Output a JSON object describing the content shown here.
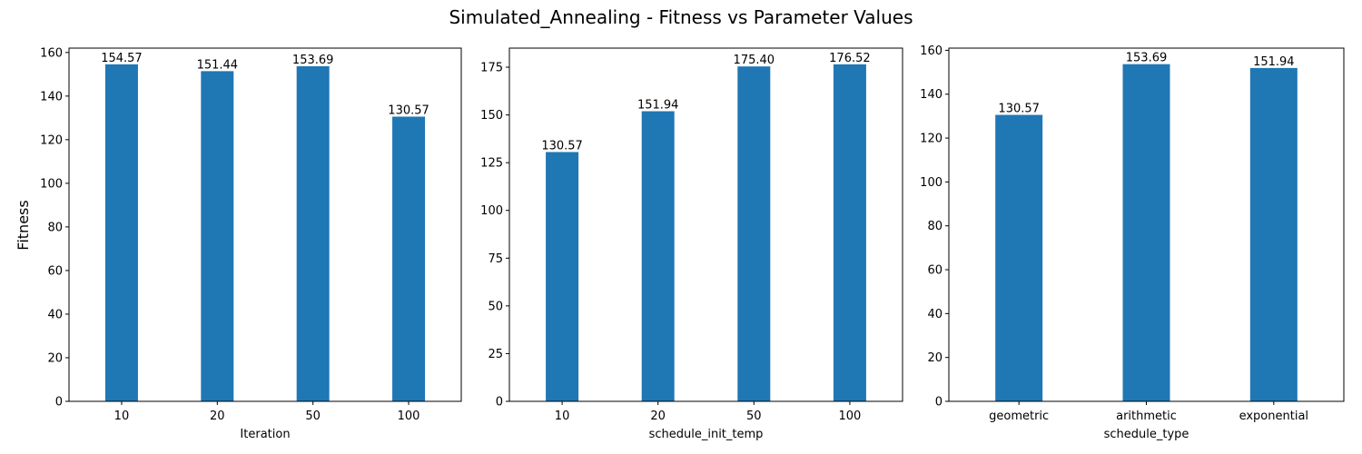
{
  "suptitle": "Simulated_Annealing - Fitness vs Parameter Values",
  "ylabel": "Fitness",
  "bar_color": "#1f77b4",
  "chart_data": [
    {
      "type": "bar",
      "categories": [
        "10",
        "20",
        "50",
        "100"
      ],
      "values": [
        154.57,
        151.44,
        153.69,
        130.57
      ],
      "data_labels": [
        "154.57",
        "151.44",
        "153.69",
        "130.57"
      ],
      "xlabel": "Iteration",
      "ylabel": "Fitness",
      "ylim": [
        0,
        162
      ],
      "yticks": [
        0,
        20,
        40,
        60,
        80,
        100,
        120,
        140,
        160
      ]
    },
    {
      "type": "bar",
      "categories": [
        "10",
        "20",
        "50",
        "100"
      ],
      "values": [
        130.57,
        151.94,
        175.4,
        176.52
      ],
      "data_labels": [
        "130.57",
        "151.94",
        "175.40",
        "176.52"
      ],
      "xlabel": "schedule_init_temp",
      "ylim": [
        0,
        185
      ],
      "yticks": [
        0,
        25,
        50,
        75,
        100,
        125,
        150,
        175
      ]
    },
    {
      "type": "bar",
      "categories": [
        "geometric",
        "arithmetic",
        "exponential"
      ],
      "values": [
        130.57,
        153.69,
        151.94
      ],
      "data_labels": [
        "130.57",
        "153.69",
        "151.94"
      ],
      "xlabel": "schedule_type",
      "ylim": [
        0,
        161
      ],
      "yticks": [
        0,
        20,
        40,
        60,
        80,
        100,
        120,
        140,
        160
      ]
    }
  ]
}
